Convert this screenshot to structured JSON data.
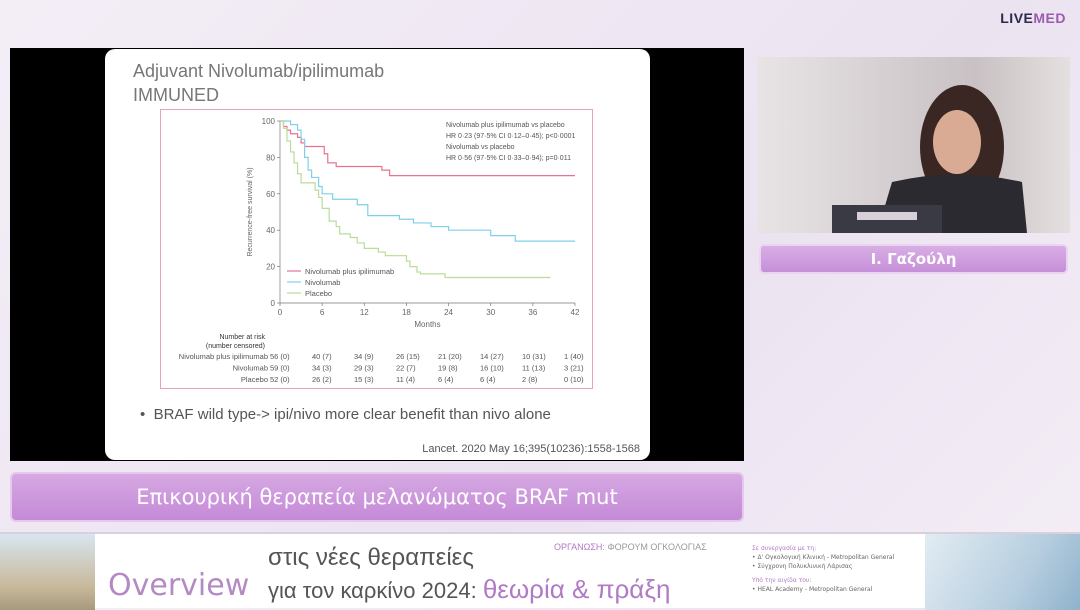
{
  "brand": {
    "live": "LIVE",
    "med": "MED"
  },
  "slide": {
    "title_line1": "Adjuvant Nivolumab/ipilimumab",
    "title_line2": "IMMUNED",
    "bullet": "BRAF wild type-> ipi/nivo more clear benefit than nivo alone",
    "reference": "Lancet. 2020 May 16;395(10236):1558-1568"
  },
  "chart_data": {
    "type": "line",
    "step": true,
    "xlabel": "Months",
    "ylabel": "Recurrence-free survival (%)",
    "xlim": [
      0,
      42
    ],
    "ylim": [
      0,
      100
    ],
    "xticks": [
      0,
      6,
      12,
      18,
      24,
      30,
      36,
      42
    ],
    "yticks": [
      0,
      20,
      40,
      60,
      80,
      100
    ],
    "grid": false,
    "legend_position": "bottom-left",
    "annotations": [
      "Nivolumab plus ipilimumab vs placebo",
      "HR 0·23 (97·5% CI 0·12–0·45); p<0·0001",
      "Nivolumab vs placebo",
      "HR 0·56 (97·5% CI 0·33–0·94); p=0·011"
    ],
    "series": [
      {
        "name": "Nivolumab plus ipilimumab",
        "color": "#e8738f",
        "points": [
          [
            0,
            100
          ],
          [
            0.5,
            97
          ],
          [
            1,
            95
          ],
          [
            1.5,
            93
          ],
          [
            2.5,
            91
          ],
          [
            3,
            88
          ],
          [
            3.5,
            86
          ],
          [
            6,
            86
          ],
          [
            6.3,
            82
          ],
          [
            6.8,
            77
          ],
          [
            8,
            75
          ],
          [
            14.5,
            73
          ],
          [
            15.6,
            70
          ],
          [
            42,
            70
          ]
        ]
      },
      {
        "name": "Nivolumab",
        "color": "#7fd0ea",
        "points": [
          [
            0,
            100
          ],
          [
            1.5,
            98
          ],
          [
            2.5,
            95
          ],
          [
            3,
            90
          ],
          [
            3.5,
            80
          ],
          [
            4,
            73
          ],
          [
            4.5,
            69
          ],
          [
            5.5,
            64
          ],
          [
            6,
            60
          ],
          [
            7.5,
            57
          ],
          [
            10,
            57
          ],
          [
            11,
            54
          ],
          [
            12.5,
            48
          ],
          [
            17,
            46
          ],
          [
            19,
            44
          ],
          [
            21.5,
            42
          ],
          [
            24,
            40
          ],
          [
            30,
            37
          ],
          [
            33.5,
            34
          ],
          [
            42,
            34
          ]
        ]
      },
      {
        "name": "Placebo",
        "color": "#b9dc9a",
        "points": [
          [
            0,
            100
          ],
          [
            0.5,
            96
          ],
          [
            1,
            89
          ],
          [
            1.5,
            83
          ],
          [
            2,
            77
          ],
          [
            2.5,
            71
          ],
          [
            3,
            66
          ],
          [
            5,
            62
          ],
          [
            5.5,
            58
          ],
          [
            6,
            52
          ],
          [
            7,
            45
          ],
          [
            8,
            42
          ],
          [
            8.5,
            38
          ],
          [
            10,
            36
          ],
          [
            11,
            33
          ],
          [
            12,
            30
          ],
          [
            14,
            28
          ],
          [
            15,
            26
          ],
          [
            18,
            23
          ],
          [
            18.5,
            20
          ],
          [
            19.5,
            17
          ],
          [
            20,
            16
          ],
          [
            23.5,
            14
          ],
          [
            38.5,
            14
          ]
        ]
      }
    ],
    "risk_table": {
      "header1": "Number at risk",
      "header2": "(number censored)",
      "rows": [
        {
          "label": "Nivolumab plus ipilimumab",
          "values": [
            "56 (0)",
            "40 (7)",
            "34 (9)",
            "26 (15)",
            "21 (20)",
            "14 (27)",
            "10 (31)",
            "1 (40)"
          ]
        },
        {
          "label": "Nivolumab",
          "values": [
            "59 (0)",
            "34 (3)",
            "29 (3)",
            "22 (7)",
            "19 (8)",
            "16 (10)",
            "11 (13)",
            "3 (21)"
          ]
        },
        {
          "label": "Placebo",
          "values": [
            "52 (0)",
            "26 (2)",
            "15 (3)",
            "11 (4)",
            "6 (4)",
            "6 (4)",
            "2 (8)",
            "0 (10)"
          ]
        }
      ]
    }
  },
  "caption": "Επικουρική θεραπεία μελανώματος BRAF mut",
  "speaker": "Ι. Γαζούλη",
  "banner": {
    "overview": "Overview",
    "line1": "στις νέες θεραπείες",
    "line2_a": "για τον καρκίνο 2024:",
    "line2_b": "θεωρία & πράξη",
    "org_label": "ΟΡΓΑΝΩΣΗ:",
    "org_name": "ΦΟΡΟΥΜ ΟΓΚΟΛΟΓΙΑΣ",
    "collab_label": "Σε συνεργασία με τη:",
    "collab1": "• Δ' Ογκολογική Κλινική - Metropolitan General",
    "collab2": "• Σύγχρονη Πολυκλινική Λάρισας",
    "auspices_label": "Υπό την αιγίδα του:",
    "auspices1": "• HEAL Academy - Metropolitan General"
  }
}
